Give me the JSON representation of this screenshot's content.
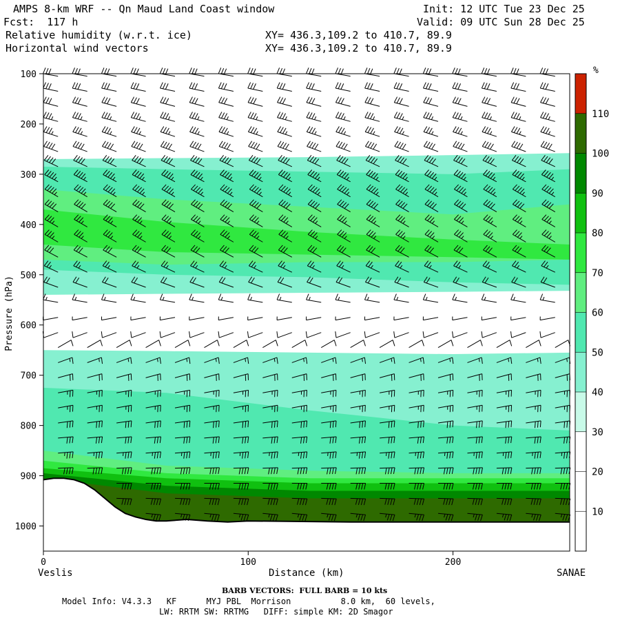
{
  "header": {
    "model_title": "AMPS 8-km WRF -- Qn Maud Land Coast window",
    "init": "Init: 12 UTC Tue 23 Dec 25",
    "fcst": "Fcst:  117 h",
    "valid": "Valid: 09 UTC Sun 28 Dec 25",
    "field1": "Relative humidity (w.r.t. ice)",
    "field1_xy": "XY= 436.3,109.2 to 410.7, 89.9",
    "field2": "Horizontal wind vectors",
    "field2_xy": "XY= 436.3,109.2 to 410.7, 89.9"
  },
  "footer": {
    "barb_note": "BARB VECTORS:  FULL BARB = 10 kts",
    "model_info_1": "Model Info: V4.3.3   KF      MYJ PBL  Morrison          8.0 km,  60 levels,",
    "model_info_2": "LW: RRTM SW: RRTMG   DIFF: simple KM: 2D Smagor"
  },
  "chart_data": {
    "type": "cross-section contour",
    "ylabel": "Pressure (hPa)",
    "xlabel": "Distance (km)",
    "x_left_label": "Veslis",
    "x_right_label": "SANAE",
    "xlim": [
      0,
      257
    ],
    "ylim": [
      1050,
      100
    ],
    "y_ticks": [
      100,
      200,
      300,
      400,
      500,
      600,
      700,
      800,
      900,
      1000
    ],
    "x_ticks": [
      0,
      100,
      200
    ],
    "colorbar": {
      "unit": "%",
      "levels": [
        10,
        20,
        30,
        40,
        50,
        60,
        70,
        80,
        90,
        100,
        110
      ],
      "colors": [
        "#ffffff",
        "#ffffff",
        "#ffffff",
        "#c8fae8",
        "#86f0d0",
        "#50e8b0",
        "#60ee80",
        "#30e840",
        "#10c010",
        "#008800",
        "#2e6a00",
        "#cc2200"
      ]
    },
    "rh_bands": [
      {
        "level": 40,
        "top": [
          270,
          268,
          266,
          262,
          258
        ],
        "bottom": [
          540,
          538,
          536,
          534,
          532
        ]
      },
      {
        "level": 50,
        "top": [
          285,
          290,
          295,
          300,
          290
        ],
        "bottom": [
          490,
          500,
          505,
          515,
          520
        ]
      },
      {
        "level": 60,
        "top": [
          330,
          350,
          365,
          380,
          360
        ],
        "bottom": [
          470,
          480,
          475,
          475,
          470
        ]
      },
      {
        "level": 70,
        "top": [
          370,
          395,
          415,
          430,
          440
        ],
        "bottom": [
          440,
          455,
          460,
          465,
          470
        ]
      },
      {
        "level": 40,
        "top": [
          650,
          652,
          655,
          658,
          655
        ],
        "bottom": [
          1000,
          1000,
          1000,
          1000,
          1000
        ]
      },
      {
        "level": 50,
        "top": [
          725,
          735,
          770,
          800,
          810
        ],
        "bottom": [
          1000,
          1000,
          1000,
          1000,
          1000
        ]
      },
      {
        "level": 60,
        "top": [
          850,
          880,
          890,
          895,
          895
        ],
        "bottom": [
          1000,
          1000,
          1000,
          1000,
          1000
        ]
      },
      {
        "level": 70,
        "top": [
          870,
          895,
          905,
          905,
          905
        ],
        "bottom": [
          1000,
          1000,
          1000,
          1000,
          1000
        ]
      },
      {
        "level": 80,
        "top": [
          885,
          905,
          915,
          915,
          915
        ],
        "bottom": [
          1000,
          1000,
          1000,
          1000,
          1000
        ]
      },
      {
        "level": 90,
        "top": [
          895,
          920,
          930,
          930,
          930
        ],
        "bottom": [
          1000,
          1000,
          1000,
          1000,
          1000
        ]
      },
      {
        "level": 100,
        "top": [
          905,
          935,
          945,
          945,
          945
        ],
        "bottom": [
          1000,
          1000,
          1000,
          1000,
          1000
        ]
      }
    ],
    "band_x": [
      0,
      60,
      130,
      200,
      257
    ],
    "terrain": {
      "x": [
        0,
        5,
        10,
        15,
        20,
        25,
        30,
        35,
        40,
        45,
        50,
        55,
        60,
        70,
        80,
        90,
        100,
        150,
        200,
        257
      ],
      "p": [
        908,
        905,
        905,
        908,
        915,
        928,
        945,
        962,
        975,
        982,
        987,
        990,
        990,
        987,
        990,
        992,
        990,
        992,
        992,
        992
      ]
    },
    "wind": {
      "barb_x_count": 18,
      "levels": [
        105,
        135,
        165,
        195,
        225,
        255,
        285,
        315,
        345,
        375,
        405,
        435,
        465,
        495,
        525,
        555,
        585,
        615,
        645,
        675,
        705,
        735,
        765,
        795,
        825,
        855,
        885,
        915,
        945,
        975
      ],
      "speed_kt": [
        30,
        32,
        34,
        35,
        38,
        40,
        44,
        46,
        45,
        42,
        38,
        35,
        32,
        28,
        24,
        15,
        8,
        10,
        14,
        18,
        22,
        25,
        28,
        30,
        34,
        36,
        40,
        44,
        40,
        36
      ],
      "direction_deg": [
        280,
        282,
        285,
        285,
        288,
        290,
        295,
        298,
        300,
        300,
        300,
        300,
        298,
        295,
        290,
        280,
        260,
        250,
        60,
        70,
        75,
        80,
        80,
        82,
        85,
        85,
        88,
        90,
        92,
        95
      ]
    }
  }
}
